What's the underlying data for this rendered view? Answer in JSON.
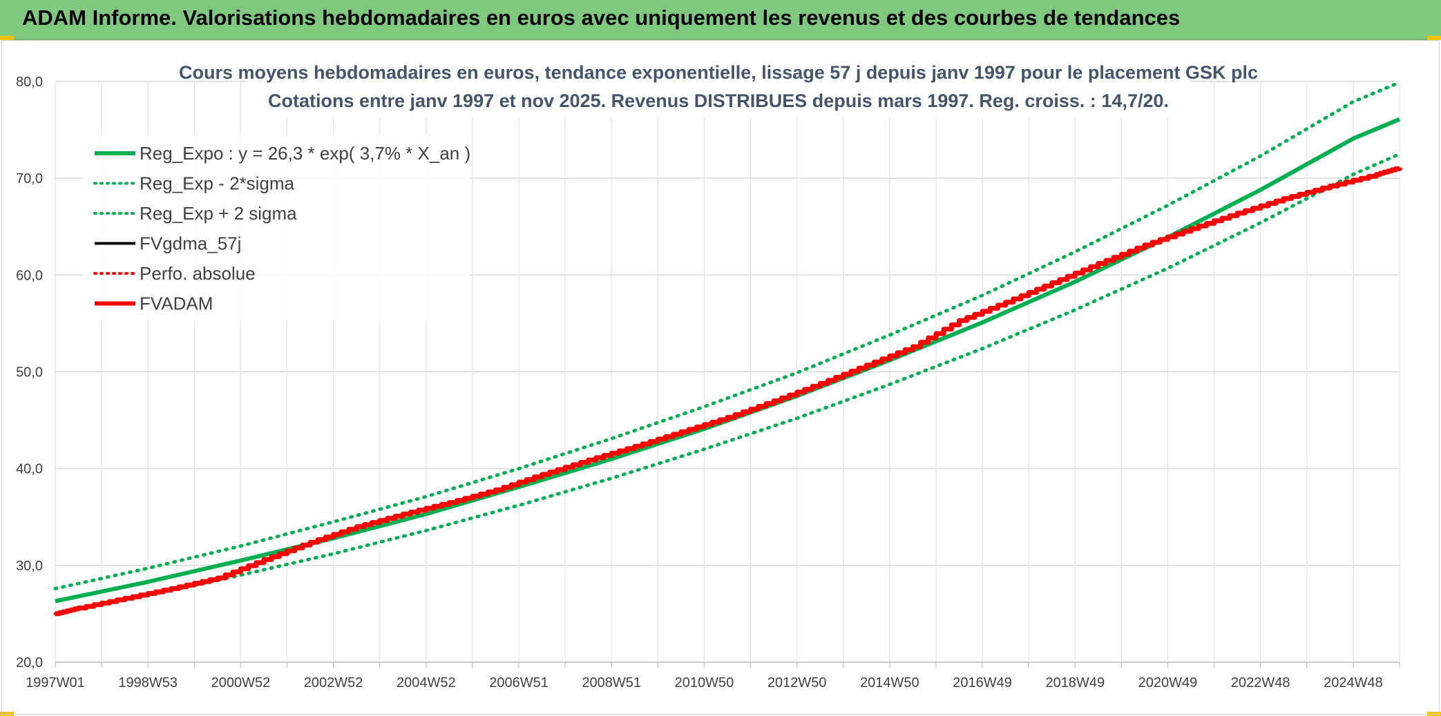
{
  "banner": {
    "title": "ADAM Informe. Valorisations hebdomadaires en euros avec uniquement les revenus et des courbes de tendances",
    "color": "#7fc97f"
  },
  "chart_data": {
    "type": "line",
    "title": "Cours moyens hebdomadaires en euros, tendance exponentielle, lissage 57 j depuis janv 1997 pour le placement GSK plc",
    "subtitle": "Cotations entre janv 1997 et nov 2025. Revenus DISTRIBUES depuis mars 1997. Reg. croiss. : 14,7/20.",
    "xlabel": "",
    "ylabel": "",
    "ylim": [
      20,
      80
    ],
    "yticks": [
      "20,0",
      "30,0",
      "40,0",
      "50,0",
      "60,0",
      "70,0",
      "80,0"
    ],
    "xlim": [
      1997.0,
      2026.0
    ],
    "xticks": [
      {
        "x": 1997.0,
        "label": "1997W01"
      },
      {
        "x": 1999.0,
        "label": "1998W53"
      },
      {
        "x": 2001.0,
        "label": "2000W52"
      },
      {
        "x": 2003.0,
        "label": "2002W52"
      },
      {
        "x": 2005.0,
        "label": "2004W52"
      },
      {
        "x": 2007.0,
        "label": "2006W51"
      },
      {
        "x": 2009.0,
        "label": "2008W51"
      },
      {
        "x": 2011.0,
        "label": "2010W50"
      },
      {
        "x": 2013.0,
        "label": "2012W50"
      },
      {
        "x": 2015.0,
        "label": "2014W50"
      },
      {
        "x": 2017.0,
        "label": "2016W49"
      },
      {
        "x": 2019.0,
        "label": "2018W49"
      },
      {
        "x": 2021.0,
        "label": "2020W49"
      },
      {
        "x": 2023.0,
        "label": "2022W48"
      },
      {
        "x": 2025.0,
        "label": "2024W48"
      }
    ],
    "grid": true,
    "legend_position": "top-left",
    "series": [
      {
        "name": "Reg_Expo : y = 26,3 * exp( 3,7% *  X_an )",
        "color": "#00b050",
        "style": "solid",
        "width": 6,
        "x": [
          1997,
          1999,
          2001,
          2003,
          2005,
          2007,
          2009,
          2011,
          2013,
          2015,
          2017,
          2019,
          2021,
          2023,
          2025,
          2026
        ],
        "y": [
          26.3,
          28.3,
          30.5,
          32.8,
          35.3,
          38.1,
          41.0,
          44.1,
          47.5,
          51.2,
          55.1,
          59.3,
          63.9,
          68.8,
          74.1,
          76.1
        ]
      },
      {
        "name": "Reg_Exp - 2*sigma",
        "color": "#00b050",
        "style": "dotted",
        "width": 5,
        "x": [
          1997,
          1999,
          2001,
          2003,
          2005,
          2007,
          2009,
          2011,
          2013,
          2015,
          2017,
          2019,
          2021,
          2023,
          2025,
          2026
        ],
        "y": [
          25.0,
          26.9,
          29.0,
          31.2,
          33.6,
          36.2,
          39.0,
          42.0,
          45.2,
          48.7,
          52.4,
          56.4,
          60.7,
          65.4,
          70.4,
          72.5
        ]
      },
      {
        "name": "Reg_Exp + 2 sigma",
        "color": "#00b050",
        "style": "dotted",
        "width": 5,
        "x": [
          1997,
          1999,
          2001,
          2003,
          2005,
          2007,
          2009,
          2011,
          2013,
          2015,
          2017,
          2019,
          2021,
          2023,
          2025,
          2026
        ],
        "y": [
          27.6,
          29.7,
          32.0,
          34.5,
          37.1,
          40.0,
          43.1,
          46.4,
          49.9,
          53.8,
          57.9,
          62.4,
          67.2,
          72.3,
          77.9,
          79.9
        ]
      },
      {
        "name": "FVgdma_57j",
        "color": "#000000",
        "style": "solid",
        "width": 4,
        "x": [
          1997.0,
          1997.5,
          1998.5,
          1999.5,
          2000.5,
          2001.5,
          2002.5,
          2003.5,
          2004.5,
          2005.5,
          2006.5,
          2007.5,
          2008.5,
          2009.5,
          2010.5,
          2011.5,
          2012.5,
          2013.5,
          2014.5,
          2015.5,
          2016.5,
          2017.5,
          2018.5,
          2019.5,
          2020.5,
          2021.5,
          2022.5,
          2023.5,
          2024.5,
          2025.5,
          2026.0
        ],
        "y": [
          25.0,
          25.6,
          26.6,
          27.6,
          28.7,
          30.6,
          32.4,
          34.0,
          35.3,
          36.5,
          37.8,
          39.4,
          40.9,
          42.3,
          43.8,
          45.3,
          47.0,
          48.8,
          50.7,
          52.6,
          55.3,
          57.2,
          59.2,
          61.2,
          63.1,
          64.8,
          66.4,
          67.9,
          69.2,
          70.4,
          71.1
        ]
      },
      {
        "name": "Perfo. absolue",
        "color": "#ff0000",
        "style": "dotted",
        "width": 4,
        "x": [
          1997.0,
          1997.5,
          1998.5,
          1999.5,
          2000.5,
          2001.5,
          2002.5,
          2003.5,
          2004.5,
          2005.5,
          2006.5,
          2007.5,
          2008.5,
          2009.5,
          2010.5,
          2011.5,
          2012.5,
          2013.5,
          2014.5,
          2015.5,
          2016.5,
          2017.5,
          2018.5,
          2019.5,
          2020.5,
          2021.5,
          2022.5,
          2023.5,
          2024.5,
          2025.5,
          2026.0
        ],
        "y": [
          25.0,
          25.6,
          26.6,
          27.6,
          28.7,
          30.6,
          32.4,
          34.0,
          35.3,
          36.5,
          37.8,
          39.4,
          40.9,
          42.3,
          43.8,
          45.3,
          47.0,
          48.8,
          50.7,
          52.6,
          55.3,
          57.2,
          59.2,
          61.2,
          63.1,
          64.8,
          66.4,
          67.9,
          69.2,
          70.4,
          71.1
        ]
      },
      {
        "name": "FVADAM",
        "color": "#ff0000",
        "style": "solid",
        "width": 7,
        "x": [
          1997.0,
          1997.5,
          1998.5,
          1999.5,
          2000.5,
          2001.5,
          2002.5,
          2003.5,
          2004.5,
          2005.5,
          2006.5,
          2007.5,
          2008.5,
          2009.5,
          2010.5,
          2011.5,
          2012.5,
          2013.5,
          2014.5,
          2015.5,
          2016.5,
          2017.5,
          2018.5,
          2019.5,
          2020.5,
          2021.5,
          2022.5,
          2023.5,
          2024.5,
          2025.5,
          2026.0
        ],
        "y": [
          25.0,
          25.6,
          26.6,
          27.6,
          28.7,
          30.6,
          32.4,
          34.0,
          35.3,
          36.5,
          37.8,
          39.4,
          40.9,
          42.3,
          43.8,
          45.3,
          47.0,
          48.8,
          50.7,
          52.6,
          55.3,
          57.2,
          59.2,
          61.2,
          63.1,
          64.8,
          66.4,
          67.9,
          69.2,
          70.4,
          71.1
        ]
      }
    ]
  }
}
